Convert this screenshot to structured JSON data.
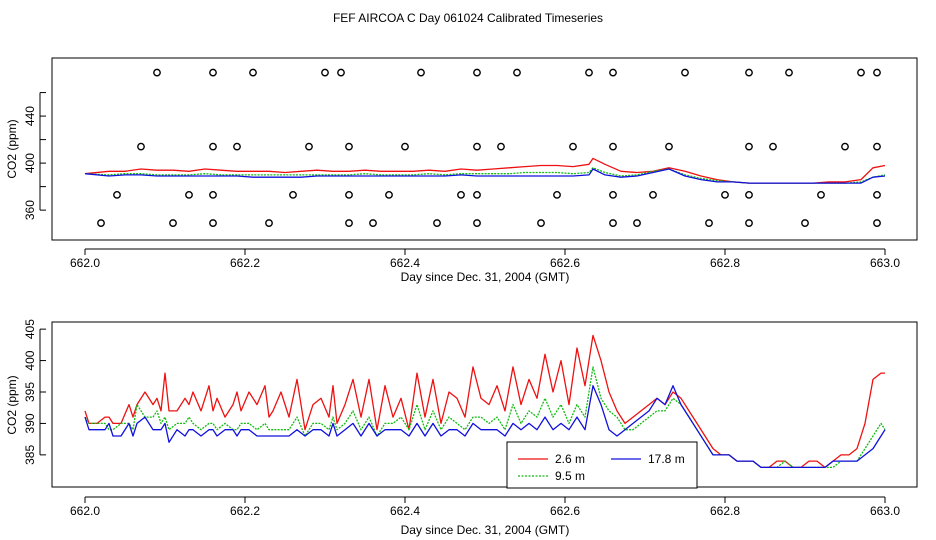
{
  "figure_title": "FEF AIRCOA C  Day 061024  Calibrated Timeseries",
  "colors": {
    "red": "#ee1111",
    "green": "#11bb11",
    "blue": "#1111dd",
    "black": "#000000"
  },
  "chart_data": [
    {
      "type": "scatter+line",
      "title": "",
      "xlabel": "Day since Dec. 31, 2004 (GMT)",
      "ylabel": "CO2 (ppm)",
      "xlim": [
        662.0,
        663.0
      ],
      "ylim": [
        338,
        486
      ],
      "x_ticks": [
        662.0,
        662.2,
        662.4,
        662.6,
        662.8,
        663.0
      ],
      "x_tick_labels": [
        "662.0",
        "662.2",
        "662.4",
        "662.6",
        "662.8",
        "663.0"
      ],
      "y_ticks": [
        360,
        380,
        400,
        420,
        440,
        460
      ],
      "y_tick_labels": [
        "360",
        "",
        "400",
        "",
        "440",
        ""
      ],
      "calibration_points": {
        "name": "calibration standards",
        "marker": "circle",
        "x": [
          662.09,
          662.16,
          662.21,
          662.3,
          662.32,
          662.42,
          662.49,
          662.54,
          662.63,
          662.66,
          662.75,
          662.83,
          662.88,
          662.97,
          662.99,
          662.07,
          662.16,
          662.19,
          662.28,
          662.33,
          662.4,
          662.49,
          662.52,
          662.61,
          662.66,
          662.73,
          662.83,
          662.86,
          662.95,
          662.99,
          662.04,
          662.13,
          662.16,
          662.26,
          662.33,
          662.38,
          662.47,
          662.49,
          662.59,
          662.66,
          662.71,
          662.8,
          662.83,
          662.92,
          662.99,
          662.02,
          662.11,
          662.16,
          662.23,
          662.33,
          662.36,
          662.44,
          662.49,
          662.57,
          662.66,
          662.69,
          662.78,
          662.83,
          662.9,
          662.99
        ],
        "y": [
          477,
          477,
          477,
          477,
          477,
          477,
          477,
          477,
          477,
          477,
          477,
          477,
          477,
          477,
          477,
          414,
          414,
          414,
          414,
          414,
          414,
          414,
          414,
          414,
          414,
          414,
          414,
          414,
          414,
          414,
          373,
          373,
          373,
          373,
          373,
          373,
          373,
          373,
          373,
          373,
          373,
          373,
          373,
          373,
          373,
          349,
          349,
          349,
          349,
          349,
          349,
          349,
          349,
          349,
          349,
          349,
          349,
          349,
          349,
          349
        ]
      },
      "x": [
        662.0,
        662.03,
        662.05,
        662.07,
        662.09,
        662.11,
        662.13,
        662.15,
        662.17,
        662.19,
        662.21,
        662.23,
        662.25,
        662.27,
        662.29,
        662.31,
        662.33,
        662.35,
        662.37,
        662.39,
        662.41,
        662.43,
        662.45,
        662.47,
        662.49,
        662.51,
        662.53,
        662.55,
        662.57,
        662.59,
        662.61,
        662.63,
        662.635,
        662.65,
        662.67,
        662.69,
        662.71,
        662.73,
        662.75,
        662.77,
        662.79,
        662.81,
        662.83,
        662.85,
        662.87,
        662.89,
        662.91,
        662.93,
        662.95,
        662.97,
        662.985,
        663.0
      ],
      "series": [
        {
          "name": "2.6 m",
          "color": "#ee1111",
          "values": [
            391,
            393,
            393,
            395,
            394,
            394,
            393,
            395,
            394,
            393,
            393,
            393,
            392,
            393,
            394,
            393,
            393,
            394,
            393,
            393,
            393,
            394,
            393,
            395,
            394,
            395,
            396,
            397,
            398,
            398,
            397,
            399,
            404,
            399,
            393,
            392,
            393,
            396,
            393,
            389,
            386,
            384,
            383,
            383,
            383,
            383,
            383,
            384,
            384,
            386,
            396,
            398
          ]
        },
        {
          "name": "9.5 m",
          "color": "#11bb11",
          "values": [
            391,
            390,
            391,
            391,
            390,
            390,
            390,
            391,
            390,
            390,
            390,
            390,
            390,
            390,
            390,
            390,
            390,
            391,
            390,
            390,
            390,
            391,
            390,
            391,
            391,
            391,
            391,
            392,
            392,
            392,
            391,
            392,
            396,
            392,
            389,
            390,
            393,
            395,
            390,
            387,
            385,
            384,
            383,
            383,
            383,
            383,
            383,
            383,
            383,
            384,
            388,
            390
          ]
        },
        {
          "name": "17.8 m",
          "color": "#1111dd",
          "values": [
            391,
            389,
            390,
            390,
            389,
            389,
            389,
            389,
            389,
            389,
            388,
            388,
            388,
            388,
            389,
            389,
            389,
            389,
            389,
            389,
            389,
            389,
            389,
            390,
            389,
            389,
            389,
            389,
            389,
            389,
            389,
            390,
            395,
            390,
            388,
            389,
            392,
            395,
            389,
            386,
            384,
            384,
            383,
            383,
            383,
            383,
            383,
            383,
            383,
            383,
            388,
            389
          ]
        }
      ]
    },
    {
      "type": "line",
      "title": "",
      "xlabel": "Day since Dec. 31, 2004 (GMT)",
      "ylabel": "CO2 (ppm)",
      "xlim": [
        662.0,
        663.0
      ],
      "ylim": [
        381,
        405.5
      ],
      "x_ticks": [
        662.0,
        662.2,
        662.4,
        662.6,
        662.8,
        663.0
      ],
      "x_tick_labels": [
        "662.0",
        "662.2",
        "662.4",
        "662.6",
        "662.8",
        "663.0"
      ],
      "y_ticks": [
        385,
        390,
        395,
        400,
        405
      ],
      "y_tick_labels": [
        "385",
        "390",
        "395",
        "400",
        "405"
      ],
      "legend": {
        "placement": "bottom-center",
        "entries": [
          "2.6 m",
          "9.5 m",
          "17.8 m"
        ]
      },
      "x": [
        662.0,
        662.005,
        662.015,
        662.025,
        662.03,
        662.035,
        662.045,
        662.055,
        662.06,
        662.065,
        662.075,
        662.085,
        662.09,
        662.095,
        662.1,
        662.105,
        662.115,
        662.125,
        662.13,
        662.135,
        662.145,
        662.155,
        662.16,
        662.165,
        662.175,
        662.185,
        662.19,
        662.195,
        662.205,
        662.215,
        662.225,
        662.23,
        662.235,
        662.245,
        662.255,
        662.265,
        662.275,
        662.285,
        662.295,
        662.305,
        662.31,
        662.315,
        662.325,
        662.335,
        662.345,
        662.355,
        662.365,
        662.375,
        662.385,
        662.395,
        662.405,
        662.415,
        662.425,
        662.435,
        662.445,
        662.455,
        662.465,
        662.475,
        662.485,
        662.495,
        662.505,
        662.515,
        662.525,
        662.535,
        662.545,
        662.555,
        662.565,
        662.575,
        662.585,
        662.595,
        662.605,
        662.615,
        662.625,
        662.635,
        662.645,
        662.655,
        662.665,
        662.675,
        662.685,
        662.695,
        662.705,
        662.715,
        662.725,
        662.735,
        662.745,
        662.755,
        662.765,
        662.775,
        662.785,
        662.795,
        662.805,
        662.815,
        662.825,
        662.835,
        662.845,
        662.855,
        662.865,
        662.875,
        662.885,
        662.895,
        662.905,
        662.915,
        662.925,
        662.935,
        662.945,
        662.955,
        662.965,
        662.975,
        662.985,
        662.995,
        663.0
      ],
      "series": [
        {
          "name": "2.6 m",
          "color": "#ee1111",
          "values": [
            392,
            390,
            390,
            391,
            391,
            390,
            390,
            393,
            391,
            393,
            395,
            393,
            394,
            392,
            398,
            392,
            392,
            394,
            393,
            395,
            392,
            396,
            392,
            394,
            391,
            393,
            395,
            392,
            395,
            393,
            396,
            391,
            392,
            395,
            391,
            397,
            389,
            393,
            394,
            391,
            396,
            390,
            393,
            397,
            391,
            397,
            389,
            396,
            391,
            394,
            389,
            398,
            391,
            397,
            390,
            395,
            394,
            391,
            399,
            394,
            393,
            396,
            392,
            399,
            393,
            397,
            394,
            401,
            395,
            400,
            393,
            402,
            396,
            404,
            400,
            395,
            392,
            390,
            391,
            392,
            393,
            394,
            393,
            395,
            394,
            392,
            390,
            388,
            386,
            385,
            385,
            384,
            384,
            384,
            383,
            383,
            384,
            384,
            383,
            383,
            384,
            384,
            383,
            384,
            385,
            385,
            386,
            390,
            397,
            398,
            398
          ]
        },
        {
          "name": "9.5 m",
          "color": "#11bb11",
          "values": [
            391,
            390,
            390,
            390,
            389,
            389,
            390,
            390,
            389,
            393,
            391,
            391,
            392,
            390,
            391,
            389,
            390,
            390,
            391,
            390,
            389,
            390,
            390,
            389,
            390,
            389,
            389,
            390,
            390,
            389,
            390,
            389,
            389,
            389,
            389,
            391,
            388,
            390,
            390,
            389,
            391,
            389,
            390,
            392,
            389,
            391,
            388,
            390,
            390,
            391,
            389,
            393,
            389,
            392,
            389,
            391,
            390,
            389,
            391,
            391,
            390,
            391,
            389,
            393,
            390,
            392,
            391,
            394,
            391,
            393,
            390,
            393,
            391,
            399,
            394,
            392,
            391,
            389,
            389,
            390,
            391,
            392,
            392,
            394,
            393,
            391,
            389,
            387,
            385,
            385,
            385,
            384,
            384,
            384,
            383,
            383,
            383,
            384,
            383,
            383,
            383,
            383,
            383,
            383,
            384,
            384,
            384,
            386,
            388,
            390,
            389
          ]
        },
        {
          "name": "17.8 m",
          "color": "#1111dd",
          "values": [
            391,
            389,
            389,
            389,
            390,
            388,
            388,
            390,
            388,
            390,
            391,
            389,
            389,
            389,
            390,
            387,
            389,
            388,
            389,
            389,
            388,
            389,
            389,
            388,
            389,
            389,
            388,
            389,
            389,
            388,
            388,
            388,
            388,
            388,
            388,
            389,
            388,
            389,
            389,
            388,
            390,
            388,
            389,
            390,
            388,
            390,
            388,
            389,
            389,
            389,
            388,
            390,
            388,
            390,
            388,
            389,
            389,
            388,
            390,
            389,
            389,
            389,
            388,
            390,
            389,
            390,
            389,
            391,
            389,
            390,
            389,
            391,
            389,
            396,
            393,
            389,
            388,
            389,
            390,
            391,
            392,
            394,
            393,
            396,
            393,
            391,
            389,
            387,
            385,
            385,
            385,
            384,
            384,
            384,
            383,
            383,
            383,
            383,
            383,
            383,
            383,
            383,
            383,
            384,
            384,
            384,
            384,
            385,
            386,
            388,
            389
          ]
        }
      ]
    }
  ]
}
